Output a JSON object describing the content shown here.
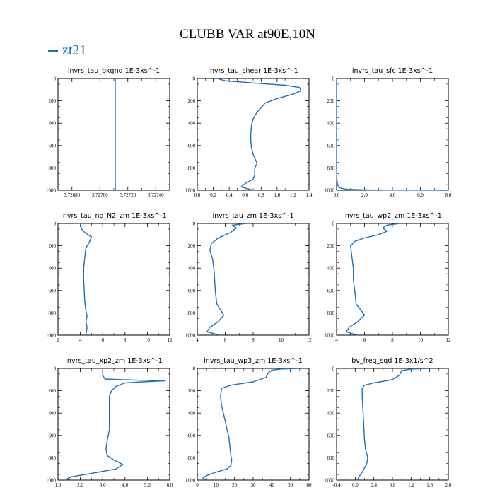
{
  "title": "CLUBB VAR at90E,10N",
  "legend": {
    "label": "zt21",
    "color": "#1f6fb4"
  },
  "chart_data": [
    {
      "type": "line",
      "title": "invrs_tau_bkgnd   1E-3xs^-1",
      "xlim": [
        3.7267,
        3.7275
      ],
      "xticks": [
        "3.72680",
        "3.72700",
        "3.72720",
        "3.72740"
      ],
      "xtick_values": [
        3.7268,
        3.727,
        3.7272,
        3.7274
      ],
      "ylim": [
        1000,
        0
      ],
      "yticks": [
        0,
        200,
        400,
        600,
        800,
        1000
      ],
      "series": [
        {
          "x": [
            3.72711,
            3.72711
          ],
          "y": [
            0,
            1000
          ]
        }
      ]
    },
    {
      "type": "line",
      "title": "invrs_tau_shear   1E-3xs^-1",
      "xlim": [
        0,
        1.4
      ],
      "xticks": [
        "0.0",
        "0.2",
        "0.4",
        "0.6",
        "0.8",
        "1.0",
        "1.2",
        "1.4"
      ],
      "xtick_values": [
        0,
        0.2,
        0.4,
        0.6,
        0.8,
        1.0,
        1.2,
        1.4
      ],
      "ylim": [
        1000,
        0
      ],
      "yticks": [
        0,
        200,
        400,
        600,
        800,
        1000
      ],
      "series": [
        {
          "x": [
            0.25,
            0.35,
            0.7,
            1.1,
            1.28,
            1.3,
            1.2,
            1.0,
            0.85,
            0.8,
            0.75,
            0.7,
            0.68,
            0.67,
            0.67,
            0.68,
            0.7,
            0.75,
            0.72,
            0.72,
            0.7,
            0.6,
            0.55,
            0.7
          ],
          "y": [
            0,
            20,
            40,
            60,
            80,
            110,
            140,
            180,
            220,
            260,
            300,
            360,
            420,
            500,
            560,
            620,
            680,
            760,
            800,
            860,
            900,
            940,
            970,
            1000
          ]
        }
      ]
    },
    {
      "type": "line",
      "title": "invrs_tau_sfc   1E-3xs^-1",
      "xlim": [
        0,
        8
      ],
      "xticks": [
        "0.0",
        "2.0",
        "4.0",
        "6.0",
        "8.0"
      ],
      "xtick_values": [
        0,
        2,
        4,
        6,
        8
      ],
      "ylim": [
        1000,
        0
      ],
      "yticks": [
        0,
        200,
        400,
        600,
        800,
        1000
      ],
      "series": [
        {
          "x": [
            0.0,
            0.0,
            0.0,
            0.02,
            0.05,
            0.1,
            0.2,
            0.4,
            0.8,
            2.0,
            3.5,
            8.0
          ],
          "y": [
            0,
            400,
            800,
            900,
            940,
            960,
            975,
            985,
            992,
            996,
            998,
            1000
          ]
        }
      ]
    },
    {
      "type": "line",
      "title": "invrs_tau_no_N2_zm   1E-3xs^-1",
      "xlim": [
        2,
        12
      ],
      "xticks": [
        "2",
        "4",
        "6",
        "8",
        "10",
        "12"
      ],
      "xtick_values": [
        2,
        4,
        6,
        8,
        10,
        12
      ],
      "ylim": [
        1000,
        0
      ],
      "yticks": [
        0,
        200,
        400,
        600,
        800,
        1000
      ],
      "series": [
        {
          "x": [
            4.0,
            4.1,
            4.5,
            5.0,
            4.8,
            4.5,
            4.4,
            4.3,
            4.3,
            4.35,
            4.4,
            4.5,
            4.6,
            4.5,
            4.6,
            4.5
          ],
          "y": [
            0,
            50,
            90,
            120,
            170,
            220,
            300,
            400,
            500,
            600,
            700,
            780,
            830,
            880,
            930,
            1000
          ]
        }
      ]
    },
    {
      "type": "line",
      "title": "invrs_tau_zm   1E-3xs^-1",
      "xlim": [
        4,
        12
      ],
      "xticks": [
        "4",
        "6",
        "8",
        "10",
        "12"
      ],
      "xtick_values": [
        4,
        6,
        8,
        10,
        12
      ],
      "ylim": [
        1000,
        0
      ],
      "yticks": [
        0,
        200,
        400,
        600,
        800,
        1000
      ],
      "series": [
        {
          "x": [
            7.5,
            6.5,
            6.8,
            6.4,
            5.5,
            5.0,
            4.9,
            5.1,
            5.2,
            5.25,
            5.3,
            5.4,
            5.9,
            5.5,
            4.9,
            4.7,
            5.6
          ],
          "y": [
            0,
            15,
            40,
            80,
            130,
            180,
            240,
            320,
            420,
            520,
            620,
            720,
            820,
            880,
            930,
            970,
            1000
          ]
        }
      ]
    },
    {
      "type": "line",
      "title": "invrs_tau_wp2_zm   1E-3xs^-1",
      "xlim": [
        4,
        12
      ],
      "xticks": [
        "4",
        "6",
        "8",
        "10",
        "12"
      ],
      "xtick_values": [
        4,
        6,
        8,
        10,
        12
      ],
      "ylim": [
        1000,
        0
      ],
      "yticks": [
        0,
        200,
        400,
        600,
        800,
        1000
      ],
      "series": [
        {
          "x": [
            8.5,
            7.6,
            7.3,
            7.6,
            7.0,
            6.0,
            5.3,
            5.0,
            5.1,
            5.2,
            5.2,
            5.3,
            5.4,
            6.0,
            5.5,
            4.9,
            4.7,
            5.5
          ],
          "y": [
            0,
            15,
            40,
            70,
            100,
            130,
            160,
            200,
            300,
            400,
            500,
            600,
            720,
            820,
            880,
            930,
            970,
            1000
          ]
        }
      ]
    },
    {
      "type": "line",
      "title": "invrs_tau_xp2_zm   1E-3xs^-1",
      "xlim": [
        1,
        6
      ],
      "xticks": [
        "1.0",
        "2.0",
        "3.0",
        "4.0",
        "5.0",
        "6.0"
      ],
      "xtick_values": [
        1,
        2,
        3,
        4,
        5,
        6
      ],
      "ylim": [
        1000,
        0
      ],
      "yticks": [
        0,
        200,
        400,
        600,
        800,
        1000
      ],
      "series": [
        {
          "x": [
            3.0,
            3.0,
            3.1,
            4.5,
            5.8,
            4.8,
            4.0,
            3.6,
            3.4,
            3.3,
            3.3,
            3.3,
            3.3,
            3.2,
            3.15,
            3.2,
            3.5,
            3.9,
            3.6,
            2.5,
            1.6,
            1.4,
            1.6
          ],
          "y": [
            0,
            60,
            95,
            105,
            110,
            120,
            130,
            160,
            200,
            250,
            350,
            450,
            550,
            650,
            720,
            780,
            820,
            860,
            900,
            940,
            970,
            990,
            1000
          ]
        }
      ]
    },
    {
      "type": "line",
      "title": "invrs_tau_wp3_zm   1E-3xs^-1",
      "xlim": [
        0,
        60
      ],
      "xticks": [
        "0",
        "10",
        "20",
        "30",
        "40",
        "50",
        "60"
      ],
      "xtick_values": [
        0,
        10,
        20,
        30,
        40,
        50,
        60
      ],
      "ylim": [
        1000,
        0
      ],
      "yticks": [
        0,
        200,
        400,
        600,
        800,
        1000
      ],
      "series": [
        {
          "x": [
            55,
            45,
            40,
            38,
            37,
            30,
            18,
            13,
            12.5,
            13,
            14,
            15,
            16,
            17,
            17.5,
            18,
            18.5,
            18,
            16,
            10,
            5,
            3,
            5
          ],
          "y": [
            0,
            5,
            15,
            40,
            80,
            120,
            150,
            180,
            250,
            330,
            400,
            470,
            550,
            620,
            700,
            780,
            820,
            870,
            900,
            930,
            960,
            980,
            1000
          ]
        }
      ]
    },
    {
      "type": "line",
      "title": "bv_freq_sqd   1E-3x1/s^2",
      "xlim": [
        -0.4,
        2.0
      ],
      "xticks": [
        "-0.4",
        "0.0",
        "0.4",
        "0.8",
        "1.2",
        "1.6",
        "2.0"
      ],
      "xtick_values": [
        -0.4,
        0.0,
        0.4,
        0.8,
        1.2,
        1.6,
        2.0
      ],
      "ylim": [
        1000,
        0
      ],
      "yticks": [
        0,
        200,
        400,
        600,
        800,
        1000
      ],
      "series": [
        {
          "x": [
            1.6,
            1.2,
            1.0,
            0.95,
            0.8,
            0.4,
            0.2,
            0.15,
            0.15,
            0.16,
            0.17,
            0.18,
            0.19,
            0.2,
            0.22,
            0.27,
            0.25,
            0.2,
            0.15,
            0.08,
            0.05
          ],
          "y": [
            0,
            5,
            20,
            60,
            100,
            130,
            150,
            180,
            250,
            330,
            400,
            480,
            560,
            640,
            720,
            800,
            850,
            890,
            930,
            970,
            1000
          ]
        }
      ]
    }
  ]
}
